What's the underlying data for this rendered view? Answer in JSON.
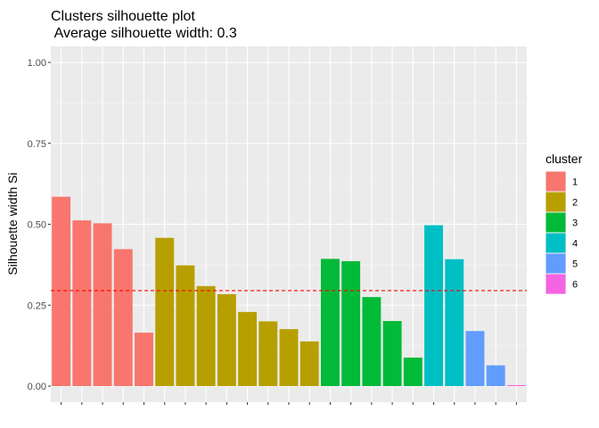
{
  "chart_data": {
    "type": "bar",
    "title": "Clusters silhouette plot",
    "subtitle": " Average silhouette width: 0.3",
    "xlabel": "",
    "ylabel": "Silhouette width Si",
    "ylim": [
      0,
      1
    ],
    "yticks": [
      "0.00",
      "0.25",
      "0.50",
      "0.75",
      "1.00"
    ],
    "grid": true,
    "reference_line": {
      "value": 0.295,
      "style": "dashed",
      "color": "#FF0000"
    },
    "legend": {
      "title": "cluster",
      "placement": "right",
      "entries": [
        {
          "label": "1",
          "color": "#F8766D"
        },
        {
          "label": "2",
          "color": "#B79F00"
        },
        {
          "label": "3",
          "color": "#00BA38"
        },
        {
          "label": "4",
          "color": "#00BFC4"
        },
        {
          "label": "5",
          "color": "#619CFF"
        },
        {
          "label": "6",
          "color": "#F564E3"
        }
      ]
    },
    "bars": [
      {
        "cluster": "1",
        "value": 0.585
      },
      {
        "cluster": "1",
        "value": 0.512
      },
      {
        "cluster": "1",
        "value": 0.503
      },
      {
        "cluster": "1",
        "value": 0.423
      },
      {
        "cluster": "1",
        "value": 0.165
      },
      {
        "cluster": "2",
        "value": 0.458
      },
      {
        "cluster": "2",
        "value": 0.373
      },
      {
        "cluster": "2",
        "value": 0.309
      },
      {
        "cluster": "2",
        "value": 0.284
      },
      {
        "cluster": "2",
        "value": 0.229
      },
      {
        "cluster": "2",
        "value": 0.2
      },
      {
        "cluster": "2",
        "value": 0.176
      },
      {
        "cluster": "2",
        "value": 0.138
      },
      {
        "cluster": "3",
        "value": 0.393
      },
      {
        "cluster": "3",
        "value": 0.386
      },
      {
        "cluster": "3",
        "value": 0.275
      },
      {
        "cluster": "3",
        "value": 0.201
      },
      {
        "cluster": "3",
        "value": 0.088
      },
      {
        "cluster": "4",
        "value": 0.497
      },
      {
        "cluster": "4",
        "value": 0.392
      },
      {
        "cluster": "5",
        "value": 0.17
      },
      {
        "cluster": "5",
        "value": 0.064
      },
      {
        "cluster": "6",
        "value": 0.003
      }
    ]
  }
}
